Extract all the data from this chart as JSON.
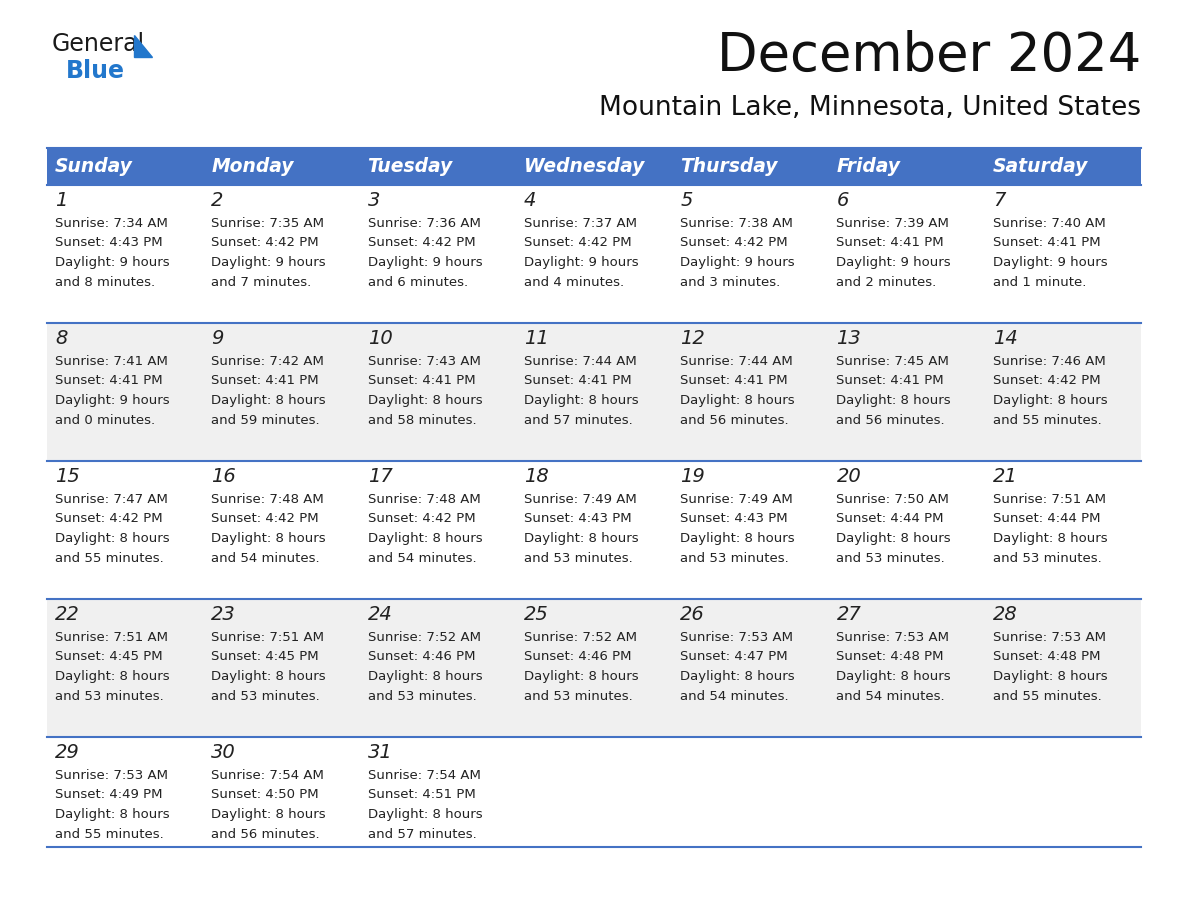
{
  "title": "December 2024",
  "subtitle": "Mountain Lake, Minnesota, United States",
  "header_bg_color": "#4472C4",
  "header_text_color": "#FFFFFF",
  "day_names": [
    "Sunday",
    "Monday",
    "Tuesday",
    "Wednesday",
    "Thursday",
    "Friday",
    "Saturday"
  ],
  "row_bg_colors": [
    "#FFFFFF",
    "#F0F0F0"
  ],
  "cell_border_color": "#4472C4",
  "day_number_color": "#222222",
  "cell_text_color": "#222222",
  "weeks": [
    [
      {
        "day": 1,
        "sunrise": "7:34 AM",
        "sunset": "4:43 PM",
        "daylight_h": "9 hours",
        "daylight_m": "and 8 minutes."
      },
      {
        "day": 2,
        "sunrise": "7:35 AM",
        "sunset": "4:42 PM",
        "daylight_h": "9 hours",
        "daylight_m": "and 7 minutes."
      },
      {
        "day": 3,
        "sunrise": "7:36 AM",
        "sunset": "4:42 PM",
        "daylight_h": "9 hours",
        "daylight_m": "and 6 minutes."
      },
      {
        "day": 4,
        "sunrise": "7:37 AM",
        "sunset": "4:42 PM",
        "daylight_h": "9 hours",
        "daylight_m": "and 4 minutes."
      },
      {
        "day": 5,
        "sunrise": "7:38 AM",
        "sunset": "4:42 PM",
        "daylight_h": "9 hours",
        "daylight_m": "and 3 minutes."
      },
      {
        "day": 6,
        "sunrise": "7:39 AM",
        "sunset": "4:41 PM",
        "daylight_h": "9 hours",
        "daylight_m": "and 2 minutes."
      },
      {
        "day": 7,
        "sunrise": "7:40 AM",
        "sunset": "4:41 PM",
        "daylight_h": "9 hours",
        "daylight_m": "and 1 minute."
      }
    ],
    [
      {
        "day": 8,
        "sunrise": "7:41 AM",
        "sunset": "4:41 PM",
        "daylight_h": "9 hours",
        "daylight_m": "and 0 minutes."
      },
      {
        "day": 9,
        "sunrise": "7:42 AM",
        "sunset": "4:41 PM",
        "daylight_h": "8 hours",
        "daylight_m": "and 59 minutes."
      },
      {
        "day": 10,
        "sunrise": "7:43 AM",
        "sunset": "4:41 PM",
        "daylight_h": "8 hours",
        "daylight_m": "and 58 minutes."
      },
      {
        "day": 11,
        "sunrise": "7:44 AM",
        "sunset": "4:41 PM",
        "daylight_h": "8 hours",
        "daylight_m": "and 57 minutes."
      },
      {
        "day": 12,
        "sunrise": "7:44 AM",
        "sunset": "4:41 PM",
        "daylight_h": "8 hours",
        "daylight_m": "and 56 minutes."
      },
      {
        "day": 13,
        "sunrise": "7:45 AM",
        "sunset": "4:41 PM",
        "daylight_h": "8 hours",
        "daylight_m": "and 56 minutes."
      },
      {
        "day": 14,
        "sunrise": "7:46 AM",
        "sunset": "4:42 PM",
        "daylight_h": "8 hours",
        "daylight_m": "and 55 minutes."
      }
    ],
    [
      {
        "day": 15,
        "sunrise": "7:47 AM",
        "sunset": "4:42 PM",
        "daylight_h": "8 hours",
        "daylight_m": "and 55 minutes."
      },
      {
        "day": 16,
        "sunrise": "7:48 AM",
        "sunset": "4:42 PM",
        "daylight_h": "8 hours",
        "daylight_m": "and 54 minutes."
      },
      {
        "day": 17,
        "sunrise": "7:48 AM",
        "sunset": "4:42 PM",
        "daylight_h": "8 hours",
        "daylight_m": "and 54 minutes."
      },
      {
        "day": 18,
        "sunrise": "7:49 AM",
        "sunset": "4:43 PM",
        "daylight_h": "8 hours",
        "daylight_m": "and 53 minutes."
      },
      {
        "day": 19,
        "sunrise": "7:49 AM",
        "sunset": "4:43 PM",
        "daylight_h": "8 hours",
        "daylight_m": "and 53 minutes."
      },
      {
        "day": 20,
        "sunrise": "7:50 AM",
        "sunset": "4:44 PM",
        "daylight_h": "8 hours",
        "daylight_m": "and 53 minutes."
      },
      {
        "day": 21,
        "sunrise": "7:51 AM",
        "sunset": "4:44 PM",
        "daylight_h": "8 hours",
        "daylight_m": "and 53 minutes."
      }
    ],
    [
      {
        "day": 22,
        "sunrise": "7:51 AM",
        "sunset": "4:45 PM",
        "daylight_h": "8 hours",
        "daylight_m": "and 53 minutes."
      },
      {
        "day": 23,
        "sunrise": "7:51 AM",
        "sunset": "4:45 PM",
        "daylight_h": "8 hours",
        "daylight_m": "and 53 minutes."
      },
      {
        "day": 24,
        "sunrise": "7:52 AM",
        "sunset": "4:46 PM",
        "daylight_h": "8 hours",
        "daylight_m": "and 53 minutes."
      },
      {
        "day": 25,
        "sunrise": "7:52 AM",
        "sunset": "4:46 PM",
        "daylight_h": "8 hours",
        "daylight_m": "and 53 minutes."
      },
      {
        "day": 26,
        "sunrise": "7:53 AM",
        "sunset": "4:47 PM",
        "daylight_h": "8 hours",
        "daylight_m": "and 54 minutes."
      },
      {
        "day": 27,
        "sunrise": "7:53 AM",
        "sunset": "4:48 PM",
        "daylight_h": "8 hours",
        "daylight_m": "and 54 minutes."
      },
      {
        "day": 28,
        "sunrise": "7:53 AM",
        "sunset": "4:48 PM",
        "daylight_h": "8 hours",
        "daylight_m": "and 55 minutes."
      }
    ],
    [
      {
        "day": 29,
        "sunrise": "7:53 AM",
        "sunset": "4:49 PM",
        "daylight_h": "8 hours",
        "daylight_m": "and 55 minutes."
      },
      {
        "day": 30,
        "sunrise": "7:54 AM",
        "sunset": "4:50 PM",
        "daylight_h": "8 hours",
        "daylight_m": "and 56 minutes."
      },
      {
        "day": 31,
        "sunrise": "7:54 AM",
        "sunset": "4:51 PM",
        "daylight_h": "8 hours",
        "daylight_m": "and 57 minutes."
      },
      null,
      null,
      null,
      null
    ]
  ],
  "logo_color_general": "#1a1a1a",
  "logo_color_blue": "#2277CC",
  "logo_triangle_color": "#2277CC"
}
